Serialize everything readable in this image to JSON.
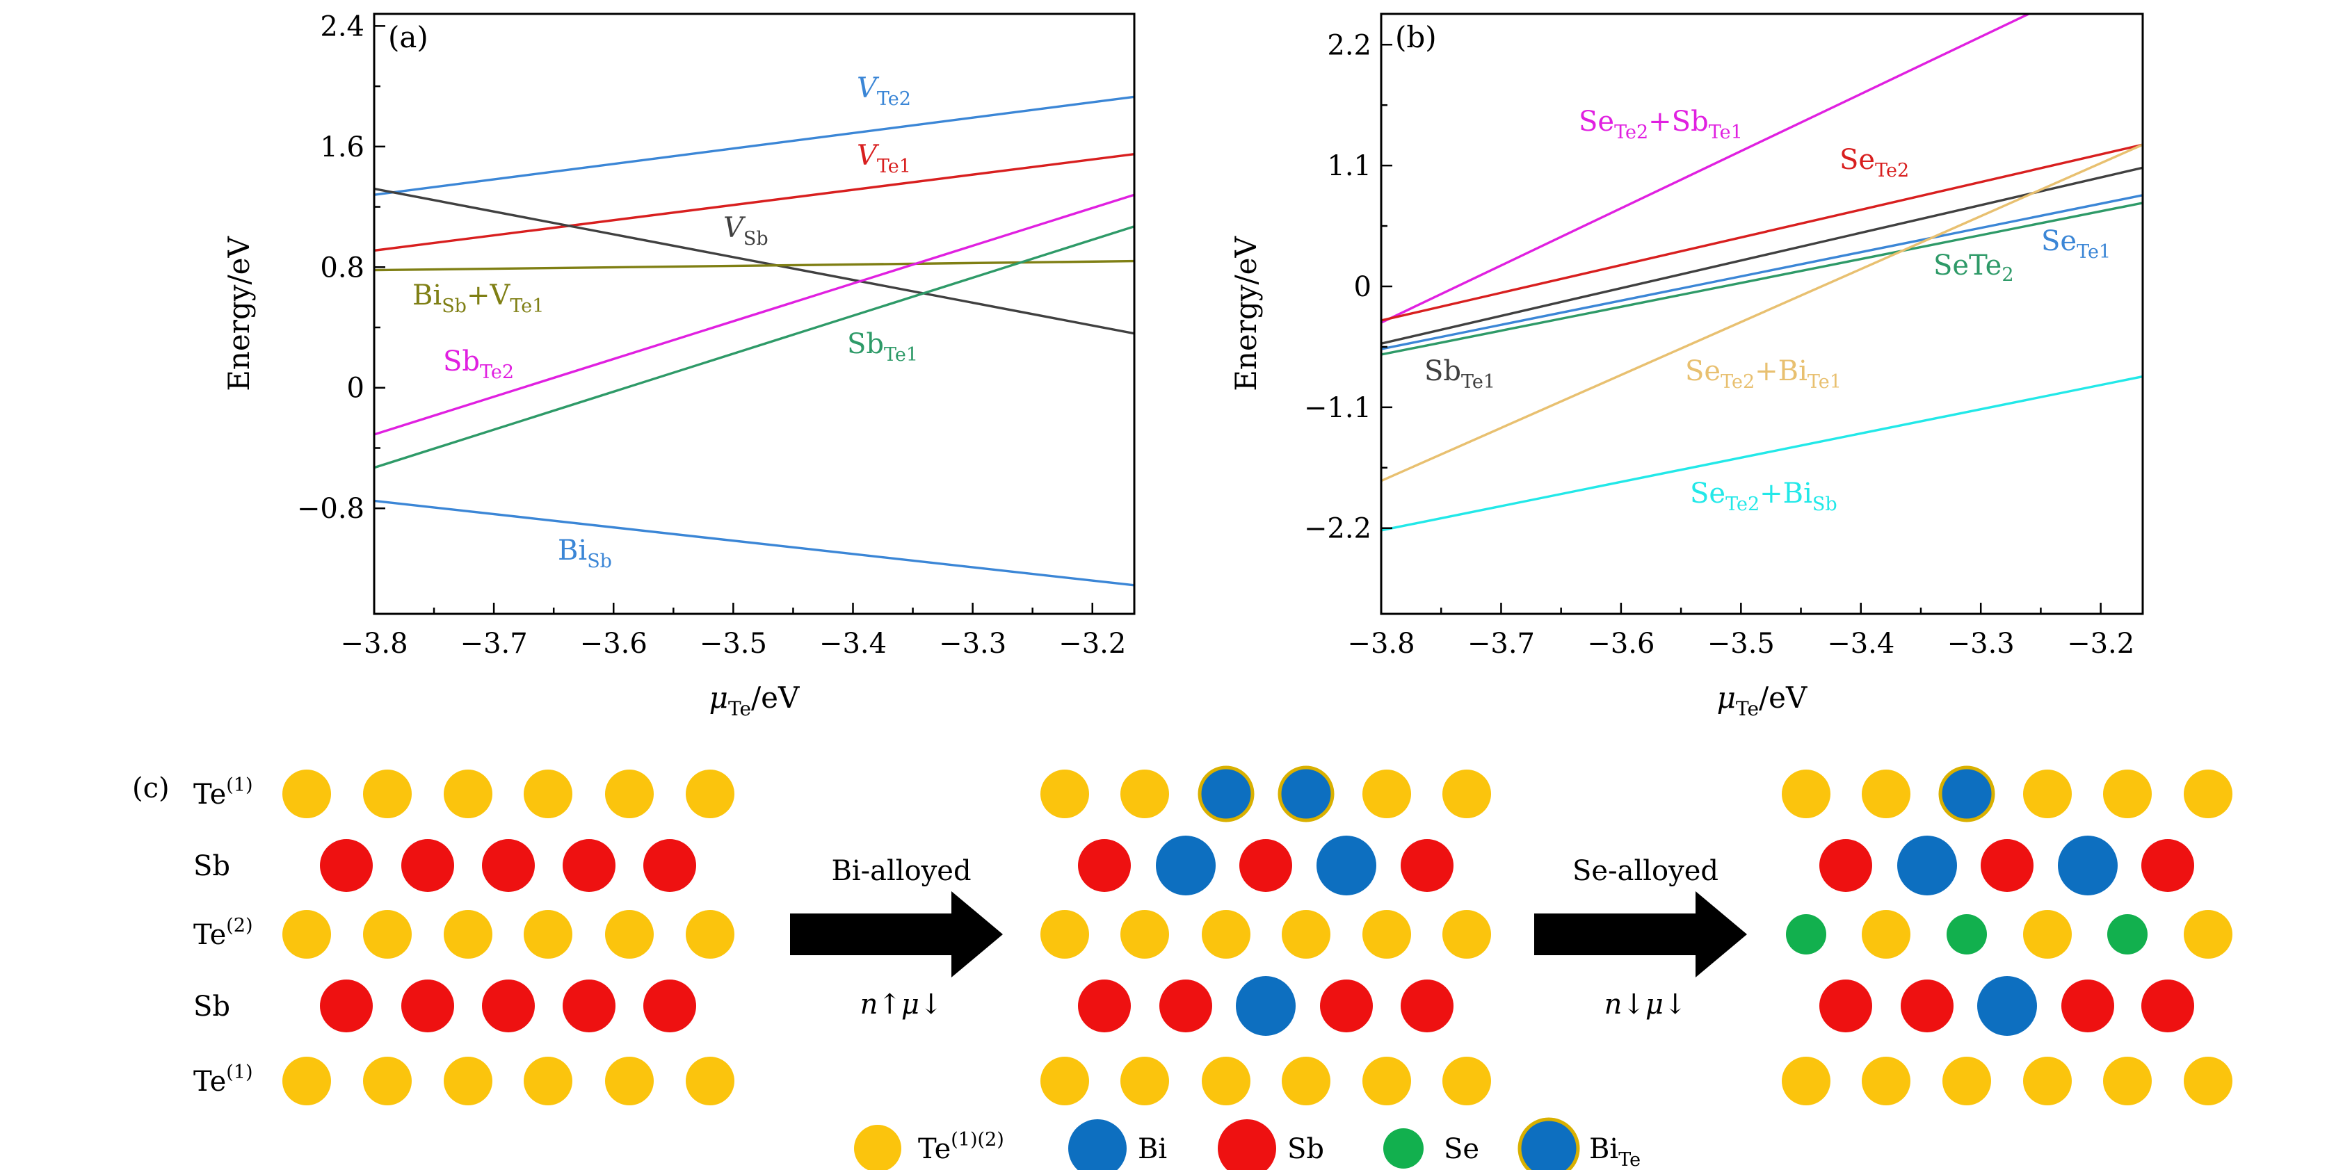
{
  "chart_data": [
    {
      "panel_label": "(a)",
      "type": "line",
      "xlabel": "μ",
      "xlabel_sub": "Te",
      "xlabel_unit": "/eV",
      "ylabel": "Energy/eV",
      "xlim": [
        -3.8,
        -3.165
      ],
      "ylim": [
        -1.5,
        2.48
      ],
      "x_ticks": [
        -3.8,
        -3.7,
        -3.6,
        -3.5,
        -3.4,
        -3.3,
        -3.2
      ],
      "x_tick_labels": [
        "−3.8",
        "−3.7",
        "−3.6",
        "−3.5",
        "−3.4",
        "−3.3",
        "−3.2"
      ],
      "y_ticks": [
        2.4,
        1.6,
        0.8,
        0,
        -0.8
      ],
      "y_tick_labels": [
        "2.4",
        "1.6",
        "0.8",
        "0",
        "−0.8"
      ],
      "grid": false,
      "series": [
        {
          "name": "V_Te2",
          "label": {
            "main": "V",
            "sub": "Te2",
            "italic": true
          },
          "color": "#3b86d6",
          "x": [
            -3.8,
            -3.165
          ],
          "y": [
            1.28,
            1.93
          ]
        },
        {
          "name": "V_Te1",
          "label": {
            "main": "V",
            "sub": "Te1",
            "italic": true
          },
          "color": "#d81f1f",
          "x": [
            -3.8,
            -3.165
          ],
          "y": [
            0.91,
            1.55
          ]
        },
        {
          "name": "V_Sb",
          "label": {
            "main": "V",
            "sub": "Sb",
            "italic": true
          },
          "color": "#404040",
          "x": [
            -3.8,
            -3.165
          ],
          "y": [
            1.32,
            0.36
          ]
        },
        {
          "name": "Bi_Sb+V_Te1",
          "label": {
            "main": "Bi",
            "sub": "Sb",
            "main2": "+V",
            "sub2": "Te1"
          },
          "color": "#7f7f14",
          "x": [
            -3.8,
            -3.165
          ],
          "y": [
            0.78,
            0.84
          ]
        },
        {
          "name": "Sb_Te2",
          "label": {
            "main": "Sb",
            "sub": "Te2"
          },
          "color": "#e020e0",
          "x": [
            -3.8,
            -3.165
          ],
          "y": [
            -0.31,
            1.28
          ]
        },
        {
          "name": "Sb_Te1",
          "label": {
            "main": "Sb",
            "sub": "Te1"
          },
          "color": "#2e9a68",
          "x": [
            -3.8,
            -3.165
          ],
          "y": [
            -0.53,
            1.07
          ]
        },
        {
          "name": "Bi_Sb",
          "label": {
            "main": "Bi",
            "sub": "Sb"
          },
          "color": "#3b86d6",
          "x": [
            -3.8,
            -3.165
          ],
          "y": [
            -0.75,
            -1.31
          ]
        }
      ]
    },
    {
      "panel_label": "(b)",
      "type": "line",
      "xlabel": "μ",
      "xlabel_sub": "Te",
      "xlabel_unit": "/eV",
      "ylabel": "Energy/eV",
      "xlim": [
        -3.8,
        -3.165
      ],
      "ylim": [
        -2.98,
        2.48
      ],
      "x_ticks": [
        -3.8,
        -3.7,
        -3.6,
        -3.5,
        -3.4,
        -3.3,
        -3.2
      ],
      "x_tick_labels": [
        "−3.8",
        "−3.7",
        "−3.6",
        "−3.5",
        "−3.4",
        "−3.3",
        "−3.2"
      ],
      "y_ticks": [
        2.2,
        1.1,
        0,
        -1.1,
        -2.2
      ],
      "y_tick_labels": [
        "2.2",
        "1.1",
        "0",
        "−1.1",
        "−2.2"
      ],
      "grid": false,
      "series": [
        {
          "name": "Se_Te2+Sb_Te1",
          "label": {
            "main": "Se",
            "sub": "Te2",
            "main2": "+Sb",
            "sub2": "Te1"
          },
          "color": "#e020e0",
          "x": [
            -3.8,
            -3.26
          ],
          "y": [
            -0.33,
            2.48
          ]
        },
        {
          "name": "Se_Te2",
          "label": {
            "main": "Se",
            "sub": "Te2"
          },
          "color": "#d81f1f",
          "x": [
            -3.8,
            -3.165
          ],
          "y": [
            -0.31,
            1.29
          ]
        },
        {
          "name": "Sb_Te1",
          "label": {
            "main": "Sb",
            "sub": "Te1"
          },
          "color": "#404040",
          "x": [
            -3.8,
            -3.165
          ],
          "y": [
            -0.52,
            1.08
          ]
        },
        {
          "name": "Se_Te1",
          "label": {
            "main": "Se",
            "sub": "Te1"
          },
          "color": "#3b86d6",
          "x": [
            -3.8,
            -3.165
          ],
          "y": [
            -0.57,
            0.83
          ]
        },
        {
          "name": "SeTe2",
          "label": {
            "main": "SeTe",
            "sub": "2",
            "sub_baseline": true
          },
          "color": "#2e9a68",
          "x": [
            -3.8,
            -3.165
          ],
          "y": [
            -0.62,
            0.76
          ]
        },
        {
          "name": "Se_Te2+Bi_Te1",
          "label": {
            "main": "Se",
            "sub": "Te2",
            "main2": "+Bi",
            "sub2": "Te1"
          },
          "color": "#e8c070",
          "x": [
            -3.8,
            -3.165
          ],
          "y": [
            -1.77,
            1.29
          ]
        },
        {
          "name": "Se_Te2+Bi_Sb",
          "label": {
            "main": "Se",
            "sub": "Te2",
            "main2": "+Bi",
            "sub2": "Sb"
          },
          "color": "#22e8e8",
          "x": [
            -3.8,
            -3.165
          ],
          "y": [
            -2.22,
            -0.82
          ]
        }
      ]
    }
  ],
  "panel_c": {
    "label": "(c)",
    "row_labels": [
      {
        "main": "Te",
        "sup": "(1)"
      },
      {
        "main": "Sb",
        "sup": ""
      },
      {
        "main": "Te",
        "sup": "(2)"
      },
      {
        "main": "Sb",
        "sup": ""
      },
      {
        "main": "Te",
        "sup": "(1)"
      }
    ],
    "arrows": [
      {
        "top": "Bi-alloyed",
        "bottom": "n↑μ↓"
      },
      {
        "top": "Se-alloyed",
        "bottom": "n↓μ↓"
      }
    ],
    "colors": {
      "Te": "#fbc40d",
      "Bi": "#0d6fc0",
      "Sb": "#ee1111",
      "Se": "#12b04e",
      "BiTe_ring": "#d9b000"
    },
    "lattices": [
      [
        [
          "Te",
          "Te",
          "Te",
          "Te",
          "Te",
          "Te"
        ],
        [
          "Sb",
          "Sb",
          "Sb",
          "Sb",
          "Sb"
        ],
        [
          "Te",
          "Te",
          "Te",
          "Te",
          "Te",
          "Te"
        ],
        [
          "Sb",
          "Sb",
          "Sb",
          "Sb",
          "Sb"
        ],
        [
          "Te",
          "Te",
          "Te",
          "Te",
          "Te",
          "Te"
        ]
      ],
      [
        [
          "Te",
          "Te",
          "BiTe",
          "BiTe",
          "Te",
          "Te"
        ],
        [
          "Sb",
          "Bi",
          "Sb",
          "Bi",
          "Sb"
        ],
        [
          "Te",
          "Te",
          "Te",
          "Te",
          "Te",
          "Te"
        ],
        [
          "Sb",
          "Sb",
          "Bi",
          "Sb",
          "Sb"
        ],
        [
          "Te",
          "Te",
          "Te",
          "Te",
          "Te",
          "Te"
        ]
      ],
      [
        [
          "Te",
          "Te",
          "BiTe",
          "Te",
          "Te",
          "Te"
        ],
        [
          "Sb",
          "Bi",
          "Sb",
          "Bi",
          "Sb"
        ],
        [
          "Se",
          "Te",
          "Se",
          "Te",
          "Se",
          "Te"
        ],
        [
          "Sb",
          "Sb",
          "Bi",
          "Sb",
          "Sb"
        ],
        [
          "Te",
          "Te",
          "Te",
          "Te",
          "Te",
          "Te"
        ]
      ]
    ],
    "legend": [
      {
        "atom": "Te",
        "main": "Te",
        "sup": "(1)(2)",
        "sub": ""
      },
      {
        "atom": "Bi",
        "main": "Bi",
        "sup": "",
        "sub": ""
      },
      {
        "atom": "Sb",
        "main": "Sb",
        "sup": "",
        "sub": ""
      },
      {
        "atom": "Se",
        "main": "Se",
        "sup": "",
        "sub": ""
      },
      {
        "atom": "BiTe",
        "main": "Bi",
        "sup": "",
        "sub": "Te"
      }
    ]
  }
}
